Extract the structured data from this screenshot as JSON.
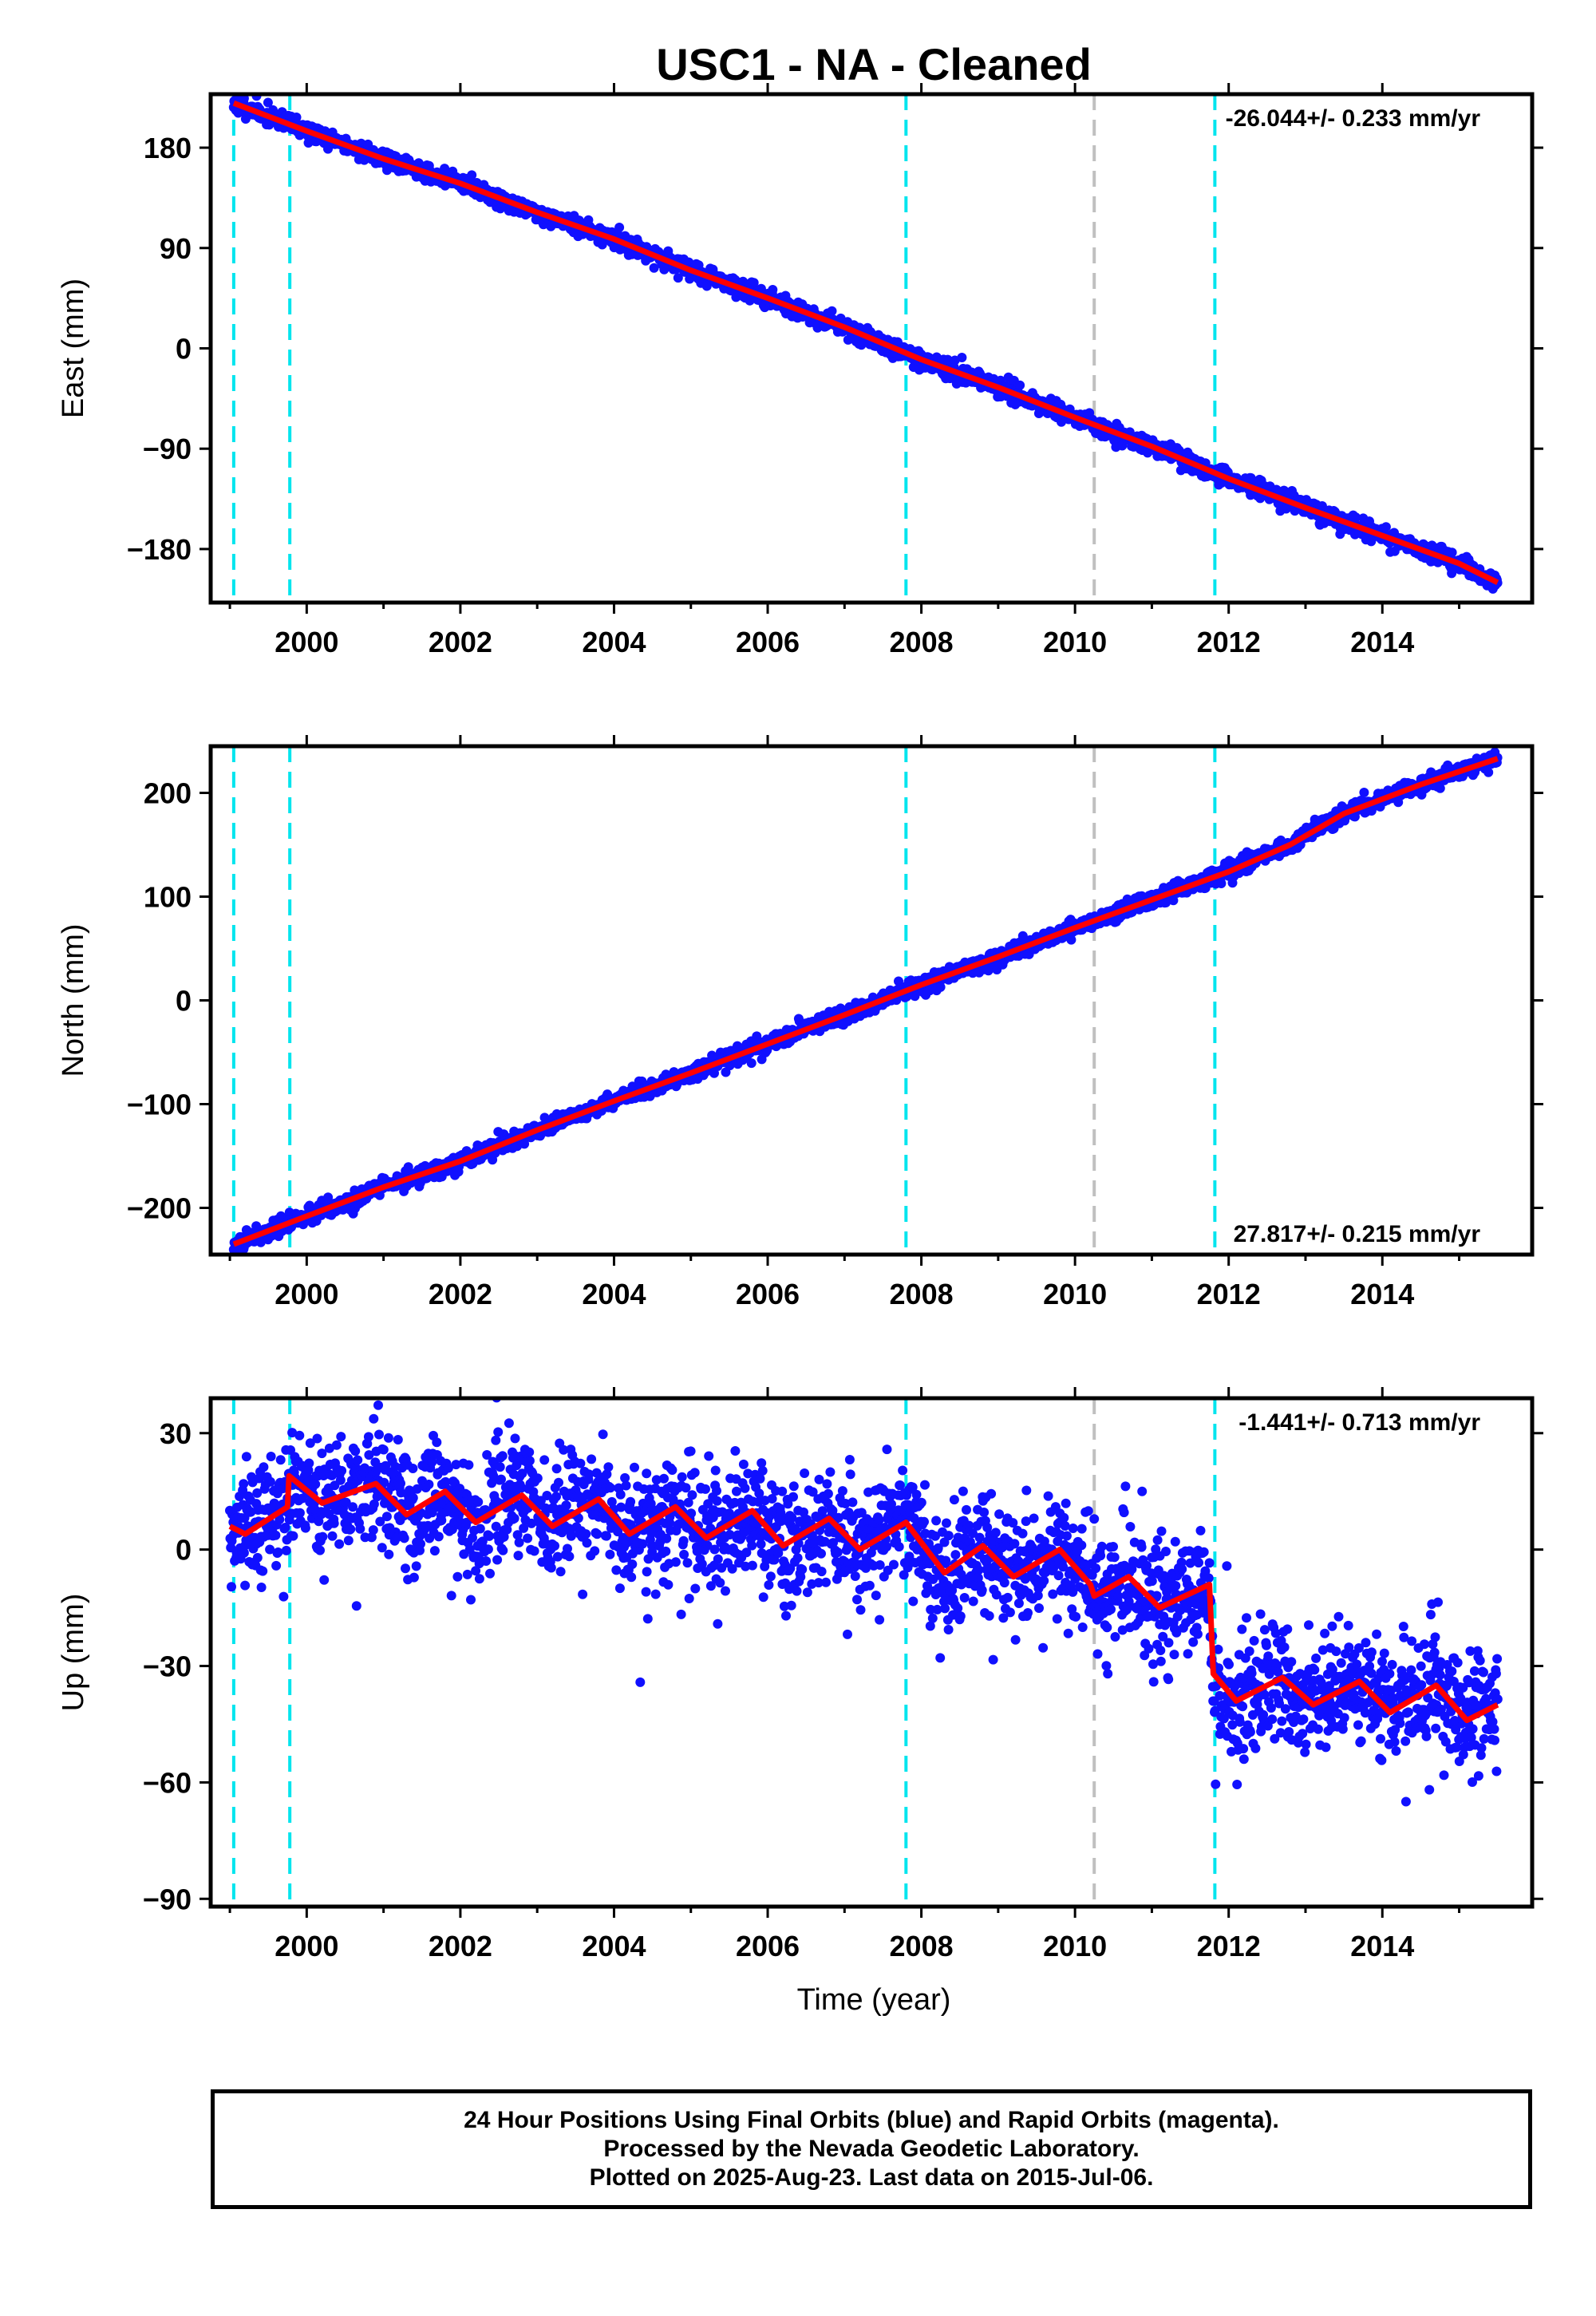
{
  "title": "USC1  - NA - Cleaned",
  "x_axis_label": "Time (year)",
  "colors": {
    "data_points": "#1010ff",
    "model_line": "#ff0000",
    "cyan_marker": "#00e5ee",
    "gray_marker": "#c0c0c0"
  },
  "footer": {
    "line1": "24 Hour Positions Using Final Orbits (blue) and Rapid Orbits (magenta).",
    "line2": "Processed by the Nevada Geodetic Laboratory.",
    "line3": "Plotted on 2025-Aug-23. Last data on 2015-Jul-06."
  },
  "chart_data": [
    {
      "type": "scatter",
      "name": "east",
      "ylabel": "East (mm)",
      "rate_text": "-26.044+/- 0.233 mm/yr",
      "rate_position": "top-right",
      "xlim": [
        1998.75,
        2015.95
      ],
      "ylim": [
        -228,
        228
      ],
      "xticks": [
        2000,
        2002,
        2004,
        2006,
        2008,
        2010,
        2012,
        2014
      ],
      "yticks": [
        180,
        90,
        0,
        -90,
        -180
      ],
      "ytick_labels": [
        "180",
        "90",
        "0",
        "−90",
        "−180"
      ],
      "model": [
        {
          "x": 1999.05,
          "y": 220
        },
        {
          "x": 2000.0,
          "y": 195
        },
        {
          "x": 2001.0,
          "y": 170
        },
        {
          "x": 2002.0,
          "y": 148
        },
        {
          "x": 2003.0,
          "y": 122
        },
        {
          "x": 2004.0,
          "y": 98
        },
        {
          "x": 2005.0,
          "y": 70
        },
        {
          "x": 2006.0,
          "y": 45
        },
        {
          "x": 2007.0,
          "y": 19
        },
        {
          "x": 2008.0,
          "y": -10
        },
        {
          "x": 2009.0,
          "y": -35
        },
        {
          "x": 2010.0,
          "y": -62
        },
        {
          "x": 2011.0,
          "y": -88
        },
        {
          "x": 2012.0,
          "y": -117
        },
        {
          "x": 2013.0,
          "y": -143
        },
        {
          "x": 2014.0,
          "y": -168
        },
        {
          "x": 2015.0,
          "y": -193
        },
        {
          "x": 2015.5,
          "y": -210
        }
      ],
      "scatter": {
        "noise": 4,
        "spread": 2.5,
        "seed": 11
      }
    },
    {
      "type": "scatter",
      "name": "north",
      "ylabel": "North (mm)",
      "rate_text": "27.817+/- 0.215 mm/yr",
      "rate_position": "bottom-right",
      "xlim": [
        1998.75,
        2015.95
      ],
      "ylim": [
        -245,
        245
      ],
      "xticks": [
        2000,
        2002,
        2004,
        2006,
        2008,
        2010,
        2012,
        2014
      ],
      "yticks": [
        200,
        100,
        0,
        -100,
        -200
      ],
      "ytick_labels": [
        "200",
        "100",
        "0",
        "−100",
        "−200"
      ],
      "model": [
        {
          "x": 1999.05,
          "y": -235
        },
        {
          "x": 2000.0,
          "y": -208
        },
        {
          "x": 2001.0,
          "y": -180
        },
        {
          "x": 2002.0,
          "y": -155
        },
        {
          "x": 2003.0,
          "y": -125
        },
        {
          "x": 2004.0,
          "y": -97
        },
        {
          "x": 2005.0,
          "y": -70
        },
        {
          "x": 2006.0,
          "y": -42
        },
        {
          "x": 2007.0,
          "y": -14
        },
        {
          "x": 2008.0,
          "y": 15
        },
        {
          "x": 2009.0,
          "y": 42
        },
        {
          "x": 2010.0,
          "y": 70
        },
        {
          "x": 2011.0,
          "y": 97
        },
        {
          "x": 2012.0,
          "y": 124
        },
        {
          "x": 2012.8,
          "y": 150
        },
        {
          "x": 2013.5,
          "y": 180
        },
        {
          "x": 2014.5,
          "y": 208
        },
        {
          "x": 2015.5,
          "y": 233
        }
      ],
      "scatter": {
        "noise": 4,
        "spread": 2.5,
        "seed": 23
      }
    },
    {
      "type": "scatter",
      "name": "up",
      "ylabel": "Up (mm)",
      "rate_text": "-1.441+/- 0.713 mm/yr",
      "rate_position": "top-right",
      "xlim": [
        1998.75,
        2015.95
      ],
      "ylim": [
        -92,
        39
      ],
      "xticks": [
        2000,
        2002,
        2004,
        2006,
        2008,
        2010,
        2012,
        2014
      ],
      "yticks": [
        30,
        0,
        -30,
        -60,
        -90
      ],
      "ytick_labels": [
        "30",
        "0",
        "−30",
        "−60",
        "−90"
      ],
      "model": [
        {
          "x": 1999.0,
          "y": 6
        },
        {
          "x": 1999.2,
          "y": 4
        },
        {
          "x": 1999.75,
          "y": 11
        },
        {
          "x": 1999.77,
          "y": 19
        },
        {
          "x": 2000.2,
          "y": 12
        },
        {
          "x": 2000.9,
          "y": 17
        },
        {
          "x": 2001.3,
          "y": 9
        },
        {
          "x": 2001.8,
          "y": 15
        },
        {
          "x": 2002.2,
          "y": 7
        },
        {
          "x": 2002.8,
          "y": 14
        },
        {
          "x": 2003.2,
          "y": 6
        },
        {
          "x": 2003.8,
          "y": 13
        },
        {
          "x": 2004.2,
          "y": 4
        },
        {
          "x": 2004.8,
          "y": 11
        },
        {
          "x": 2005.2,
          "y": 3
        },
        {
          "x": 2005.8,
          "y": 10
        },
        {
          "x": 2006.2,
          "y": 1
        },
        {
          "x": 2006.8,
          "y": 8
        },
        {
          "x": 2007.2,
          "y": 0
        },
        {
          "x": 2007.8,
          "y": 7
        },
        {
          "x": 2008.3,
          "y": -6
        },
        {
          "x": 2008.8,
          "y": 1
        },
        {
          "x": 2009.2,
          "y": -7
        },
        {
          "x": 2009.8,
          "y": 0
        },
        {
          "x": 2010.2,
          "y": -9
        },
        {
          "x": 2010.25,
          "y": -12
        },
        {
          "x": 2010.7,
          "y": -7
        },
        {
          "x": 2011.1,
          "y": -15
        },
        {
          "x": 2011.75,
          "y": -9
        },
        {
          "x": 2011.8,
          "y": -32
        },
        {
          "x": 2012.1,
          "y": -39
        },
        {
          "x": 2012.7,
          "y": -33
        },
        {
          "x": 2013.1,
          "y": -40
        },
        {
          "x": 2013.7,
          "y": -34
        },
        {
          "x": 2014.1,
          "y": -42
        },
        {
          "x": 2014.7,
          "y": -35
        },
        {
          "x": 2015.1,
          "y": -44
        },
        {
          "x": 2015.5,
          "y": -40
        }
      ],
      "scatter": {
        "noise": 7.5,
        "spread": 1.2,
        "seed": 37
      }
    }
  ],
  "markers": {
    "cyan": [
      1999.05,
      1999.78,
      2007.8,
      2011.82
    ],
    "gray": [
      2010.25
    ]
  }
}
